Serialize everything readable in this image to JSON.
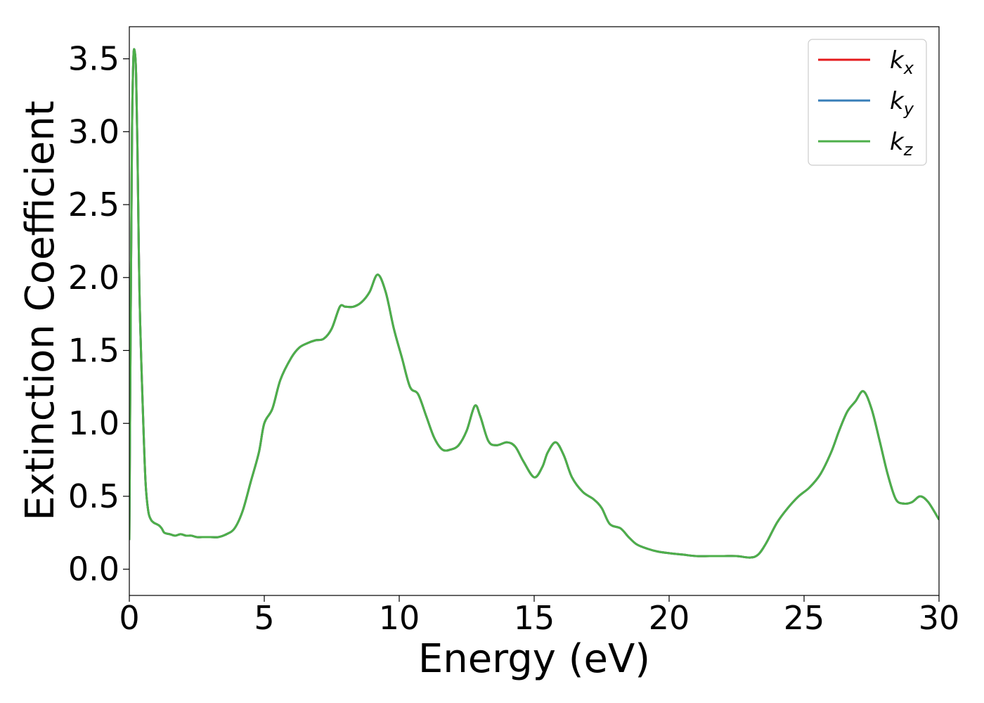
{
  "chart_data": {
    "type": "line",
    "xlabel": "Energy (eV)",
    "ylabel": "Extinction Coefficient",
    "xlim": [
      0,
      30
    ],
    "ylim": [
      -0.18,
      3.72
    ],
    "xticks": [
      "0",
      "5",
      "10",
      "15",
      "20",
      "25",
      "30"
    ],
    "yticks": [
      "0.0",
      "0.5",
      "1.0",
      "1.5",
      "2.0",
      "2.5",
      "3.0",
      "3.5"
    ],
    "grid": false,
    "legend_position": "top-right",
    "series": [
      {
        "name": "kx",
        "label_base": "k",
        "label_sub": "x",
        "color": "#e41a1c",
        "x": [
          0,
          0.05,
          0.1,
          0.15,
          0.2,
          0.25,
          0.3,
          0.35,
          0.4,
          0.5,
          0.6,
          0.7,
          0.8,
          0.9,
          1.0,
          1.1,
          1.2,
          1.3,
          1.5,
          1.7,
          1.9,
          2.1,
          2.3,
          2.5,
          2.7,
          3.0,
          3.3,
          3.6,
          3.9,
          4.2,
          4.5,
          4.8,
          5.0,
          5.3,
          5.6,
          6.0,
          6.3,
          6.6,
          6.9,
          7.2,
          7.5,
          7.8,
          8.0,
          8.3,
          8.6,
          8.9,
          9.2,
          9.5,
          9.8,
          10.1,
          10.4,
          10.7,
          11.0,
          11.3,
          11.6,
          11.9,
          12.2,
          12.5,
          12.8,
          13.0,
          13.3,
          13.6,
          14.0,
          14.3,
          14.6,
          15.0,
          15.3,
          15.5,
          15.8,
          16.1,
          16.4,
          16.8,
          17.2,
          17.5,
          17.8,
          18.2,
          18.5,
          18.8,
          19.2,
          19.6,
          20.0,
          20.5,
          21.0,
          21.5,
          22.0,
          22.5,
          23.0,
          23.3,
          23.6,
          24.0,
          24.4,
          24.8,
          25.2,
          25.6,
          26.0,
          26.3,
          26.6,
          26.9,
          27.2,
          27.5,
          27.8,
          28.1,
          28.4,
          28.7,
          29.0,
          29.3,
          29.6,
          30.0
        ],
        "y": [
          0.2,
          1.7,
          3.0,
          3.5,
          3.55,
          3.4,
          2.9,
          2.2,
          1.7,
          1.1,
          0.6,
          0.4,
          0.34,
          0.32,
          0.31,
          0.3,
          0.28,
          0.25,
          0.24,
          0.23,
          0.24,
          0.23,
          0.23,
          0.22,
          0.22,
          0.22,
          0.22,
          0.24,
          0.28,
          0.4,
          0.6,
          0.8,
          1.0,
          1.1,
          1.3,
          1.45,
          1.52,
          1.55,
          1.57,
          1.58,
          1.65,
          1.8,
          1.8,
          1.8,
          1.83,
          1.9,
          2.02,
          1.9,
          1.65,
          1.45,
          1.25,
          1.2,
          1.05,
          0.9,
          0.82,
          0.82,
          0.85,
          0.95,
          1.12,
          1.05,
          0.88,
          0.85,
          0.87,
          0.84,
          0.74,
          0.63,
          0.7,
          0.8,
          0.87,
          0.78,
          0.63,
          0.53,
          0.48,
          0.42,
          0.31,
          0.28,
          0.22,
          0.17,
          0.14,
          0.12,
          0.11,
          0.1,
          0.09,
          0.09,
          0.09,
          0.09,
          0.08,
          0.1,
          0.18,
          0.32,
          0.42,
          0.5,
          0.56,
          0.65,
          0.8,
          0.95,
          1.08,
          1.15,
          1.22,
          1.1,
          0.88,
          0.65,
          0.48,
          0.45,
          0.46,
          0.5,
          0.46,
          0.34
        ]
      },
      {
        "name": "ky",
        "label_base": "k",
        "label_sub": "y",
        "color": "#377eb8",
        "x": [
          0,
          0.05,
          0.1,
          0.15,
          0.2,
          0.25,
          0.3,
          0.35,
          0.4,
          0.5,
          0.6,
          0.7,
          0.8,
          0.9,
          1.0,
          1.1,
          1.2,
          1.3,
          1.5,
          1.7,
          1.9,
          2.1,
          2.3,
          2.5,
          2.7,
          3.0,
          3.3,
          3.6,
          3.9,
          4.2,
          4.5,
          4.8,
          5.0,
          5.3,
          5.6,
          6.0,
          6.3,
          6.6,
          6.9,
          7.2,
          7.5,
          7.8,
          8.0,
          8.3,
          8.6,
          8.9,
          9.2,
          9.5,
          9.8,
          10.1,
          10.4,
          10.7,
          11.0,
          11.3,
          11.6,
          11.9,
          12.2,
          12.5,
          12.8,
          13.0,
          13.3,
          13.6,
          14.0,
          14.3,
          14.6,
          15.0,
          15.3,
          15.5,
          15.8,
          16.1,
          16.4,
          16.8,
          17.2,
          17.5,
          17.8,
          18.2,
          18.5,
          18.8,
          19.2,
          19.6,
          20.0,
          20.5,
          21.0,
          21.5,
          22.0,
          22.5,
          23.0,
          23.3,
          23.6,
          24.0,
          24.4,
          24.8,
          25.2,
          25.6,
          26.0,
          26.3,
          26.6,
          26.9,
          27.2,
          27.5,
          27.8,
          28.1,
          28.4,
          28.7,
          29.0,
          29.3,
          29.6,
          30.0
        ],
        "y": [
          0.2,
          1.7,
          3.0,
          3.5,
          3.55,
          3.4,
          2.9,
          2.2,
          1.7,
          1.1,
          0.6,
          0.4,
          0.34,
          0.32,
          0.31,
          0.3,
          0.28,
          0.25,
          0.24,
          0.23,
          0.24,
          0.23,
          0.23,
          0.22,
          0.22,
          0.22,
          0.22,
          0.24,
          0.28,
          0.4,
          0.6,
          0.8,
          1.0,
          1.1,
          1.3,
          1.45,
          1.52,
          1.55,
          1.57,
          1.58,
          1.65,
          1.8,
          1.8,
          1.8,
          1.83,
          1.9,
          2.02,
          1.9,
          1.65,
          1.45,
          1.25,
          1.2,
          1.05,
          0.9,
          0.82,
          0.82,
          0.85,
          0.95,
          1.12,
          1.05,
          0.88,
          0.85,
          0.87,
          0.84,
          0.74,
          0.63,
          0.7,
          0.8,
          0.87,
          0.78,
          0.63,
          0.53,
          0.48,
          0.42,
          0.31,
          0.28,
          0.22,
          0.17,
          0.14,
          0.12,
          0.11,
          0.1,
          0.09,
          0.09,
          0.09,
          0.09,
          0.08,
          0.1,
          0.18,
          0.32,
          0.42,
          0.5,
          0.56,
          0.65,
          0.8,
          0.95,
          1.08,
          1.15,
          1.22,
          1.1,
          0.88,
          0.65,
          0.48,
          0.45,
          0.46,
          0.5,
          0.46,
          0.34
        ]
      },
      {
        "name": "kz",
        "label_base": "k",
        "label_sub": "z",
        "color": "#4daf4a",
        "x": [
          0,
          0.05,
          0.1,
          0.15,
          0.2,
          0.25,
          0.3,
          0.35,
          0.4,
          0.5,
          0.6,
          0.7,
          0.8,
          0.9,
          1.0,
          1.1,
          1.2,
          1.3,
          1.5,
          1.7,
          1.9,
          2.1,
          2.3,
          2.5,
          2.7,
          3.0,
          3.3,
          3.6,
          3.9,
          4.2,
          4.5,
          4.8,
          5.0,
          5.3,
          5.6,
          6.0,
          6.3,
          6.6,
          6.9,
          7.2,
          7.5,
          7.8,
          8.0,
          8.3,
          8.6,
          8.9,
          9.2,
          9.5,
          9.8,
          10.1,
          10.4,
          10.7,
          11.0,
          11.3,
          11.6,
          11.9,
          12.2,
          12.5,
          12.8,
          13.0,
          13.3,
          13.6,
          14.0,
          14.3,
          14.6,
          15.0,
          15.3,
          15.5,
          15.8,
          16.1,
          16.4,
          16.8,
          17.2,
          17.5,
          17.8,
          18.2,
          18.5,
          18.8,
          19.2,
          19.6,
          20.0,
          20.5,
          21.0,
          21.5,
          22.0,
          22.5,
          23.0,
          23.3,
          23.6,
          24.0,
          24.4,
          24.8,
          25.2,
          25.6,
          26.0,
          26.3,
          26.6,
          26.9,
          27.2,
          27.5,
          27.8,
          28.1,
          28.4,
          28.7,
          29.0,
          29.3,
          29.6,
          30.0
        ],
        "y": [
          0.2,
          1.7,
          3.0,
          3.5,
          3.55,
          3.4,
          2.9,
          2.2,
          1.7,
          1.1,
          0.6,
          0.4,
          0.34,
          0.32,
          0.31,
          0.3,
          0.28,
          0.25,
          0.24,
          0.23,
          0.24,
          0.23,
          0.23,
          0.22,
          0.22,
          0.22,
          0.22,
          0.24,
          0.28,
          0.4,
          0.6,
          0.8,
          1.0,
          1.1,
          1.3,
          1.45,
          1.52,
          1.55,
          1.57,
          1.58,
          1.65,
          1.8,
          1.8,
          1.8,
          1.83,
          1.9,
          2.02,
          1.9,
          1.65,
          1.45,
          1.25,
          1.2,
          1.05,
          0.9,
          0.82,
          0.82,
          0.85,
          0.95,
          1.12,
          1.05,
          0.88,
          0.85,
          0.87,
          0.84,
          0.74,
          0.63,
          0.7,
          0.8,
          0.87,
          0.78,
          0.63,
          0.53,
          0.48,
          0.42,
          0.31,
          0.28,
          0.22,
          0.17,
          0.14,
          0.12,
          0.11,
          0.1,
          0.09,
          0.09,
          0.09,
          0.09,
          0.08,
          0.1,
          0.18,
          0.32,
          0.42,
          0.5,
          0.56,
          0.65,
          0.8,
          0.95,
          1.08,
          1.15,
          1.22,
          1.1,
          0.88,
          0.65,
          0.48,
          0.45,
          0.46,
          0.5,
          0.46,
          0.34
        ]
      }
    ]
  }
}
